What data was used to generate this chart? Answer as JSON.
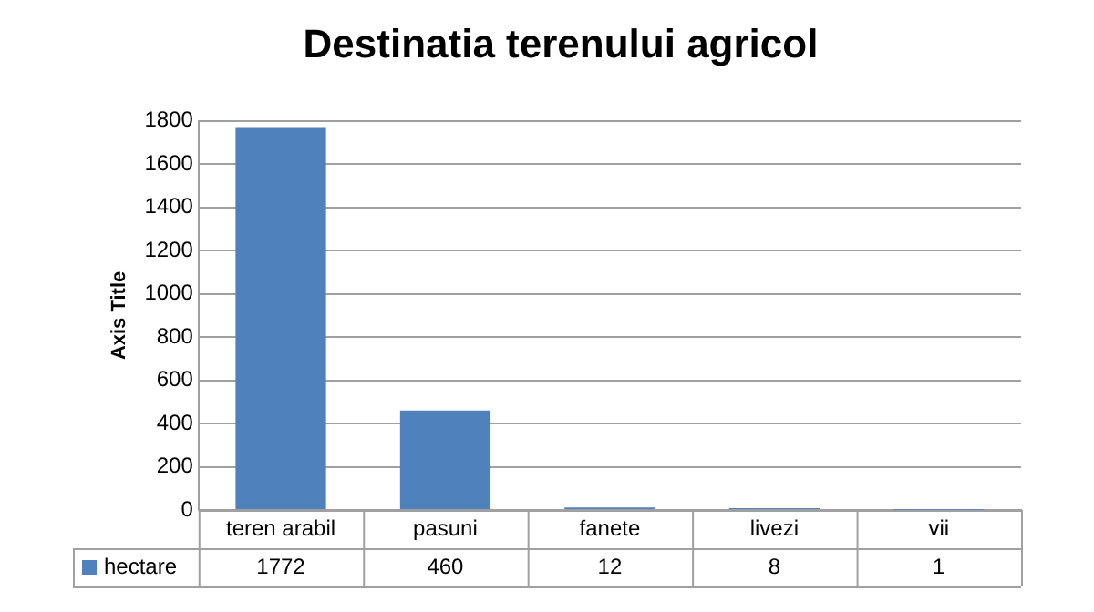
{
  "chart_data": {
    "type": "bar",
    "title": "Destinatia terenului agricol",
    "ylabel": "Axis Title",
    "categories": [
      "teren arabil",
      "pasuni",
      "fanete",
      "livezi",
      "vii"
    ],
    "series": [
      {
        "name": "hectare",
        "color": "#4f81bd",
        "values": [
          1772,
          460,
          12,
          8,
          1
        ]
      }
    ],
    "ylim": [
      0,
      1800
    ],
    "yticks": [
      0,
      200,
      400,
      600,
      800,
      1000,
      1200,
      1400,
      1600,
      1800
    ],
    "grid": "y",
    "legend": "bottom",
    "data_labels": true
  }
}
